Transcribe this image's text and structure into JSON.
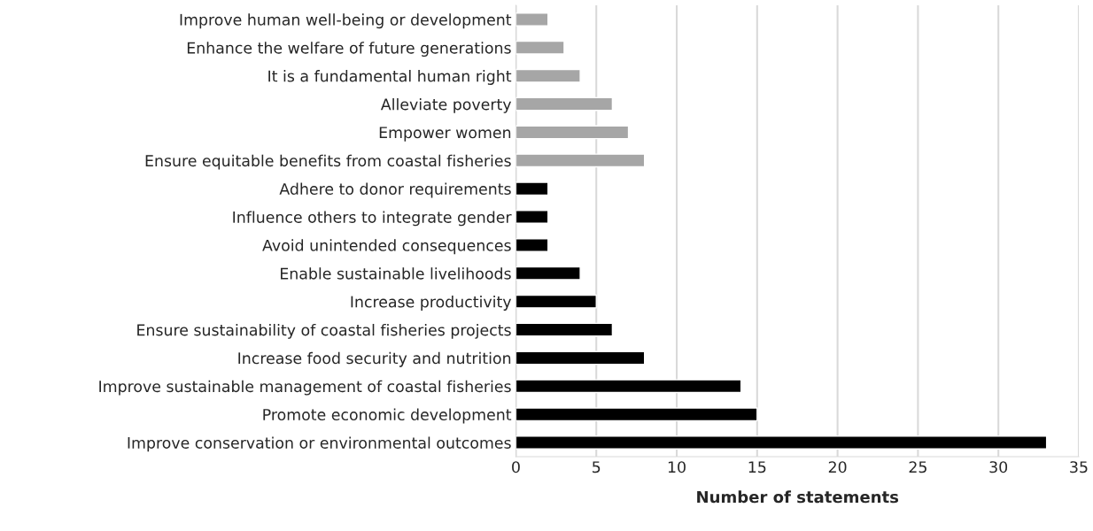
{
  "chart_data": {
    "type": "bar",
    "orientation": "horizontal",
    "xlabel": "Number of statements",
    "categories": [
      "Improve human well-being or development",
      "Enhance the welfare of future generations",
      "It is a fundamental human right",
      "Alleviate poverty",
      "Empower women",
      "Ensure equitable benefits from coastal fisheries",
      "Adhere to donor requirements",
      "Influence others to integrate gender",
      "Avoid unintended consequences",
      "Enable sustainable livelihoods",
      "Increase productivity",
      "Ensure sustainability of coastal fisheries projects",
      "Increase food security and nutrition",
      "Improve sustainable management of coastal fisheries",
      "Promote economic development",
      "Improve conservation or environmental outcomes"
    ],
    "values": [
      2,
      3,
      4,
      6,
      7,
      8,
      2,
      2,
      2,
      4,
      5,
      6,
      8,
      14,
      15,
      33
    ],
    "colors": [
      "#a6a6a6",
      "#a6a6a6",
      "#a6a6a6",
      "#a6a6a6",
      "#a6a6a6",
      "#a6a6a6",
      "#000000",
      "#000000",
      "#000000",
      "#000000",
      "#000000",
      "#000000",
      "#000000",
      "#000000",
      "#000000",
      "#000000"
    ],
    "xlim": [
      0,
      35
    ],
    "xticks": [
      0,
      5,
      10,
      15,
      20,
      25,
      30,
      35
    ],
    "grid": "x"
  }
}
